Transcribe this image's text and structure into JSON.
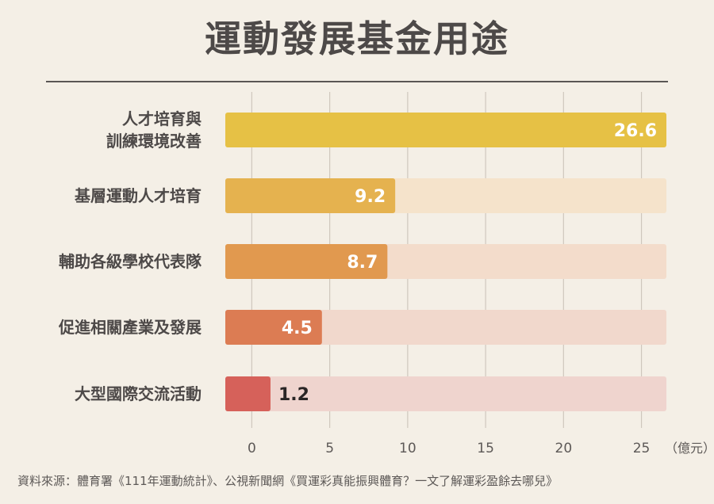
{
  "title": "運動發展基金用途",
  "source": "資料來源：體育署《111年運動統計》、公視新聞網《買運彩真能振興體育？一文了解運彩盈餘去哪兒》",
  "chart_data": {
    "type": "bar",
    "orientation": "horizontal",
    "categories": [
      [
        "人才培育與",
        "訓練環境改善"
      ],
      [
        "基層運動人才培育"
      ],
      [
        "輔助各級學校代表隊"
      ],
      [
        "促進相關產業及發展"
      ],
      [
        "大型國際交流活動"
      ]
    ],
    "values": [
      26.6,
      9.2,
      8.7,
      4.5,
      1.2
    ],
    "value_labels": [
      "26.6",
      "9.2",
      "8.7",
      "4.5",
      "1.2"
    ],
    "bar_colors": [
      "#e6c145",
      "#e5b24f",
      "#e1994f",
      "#dc7c53",
      "#d6615a"
    ],
    "track_colors": [
      "#f5e7c3",
      "#f5e3cb",
      "#f3dccb",
      "#f1d8cc",
      "#efd4ce"
    ],
    "x_ticks": [
      0,
      5,
      10,
      15,
      20,
      25
    ],
    "x_unit": "（億元）",
    "xlim": [
      -1.7,
      26.6
    ],
    "grid": true
  }
}
